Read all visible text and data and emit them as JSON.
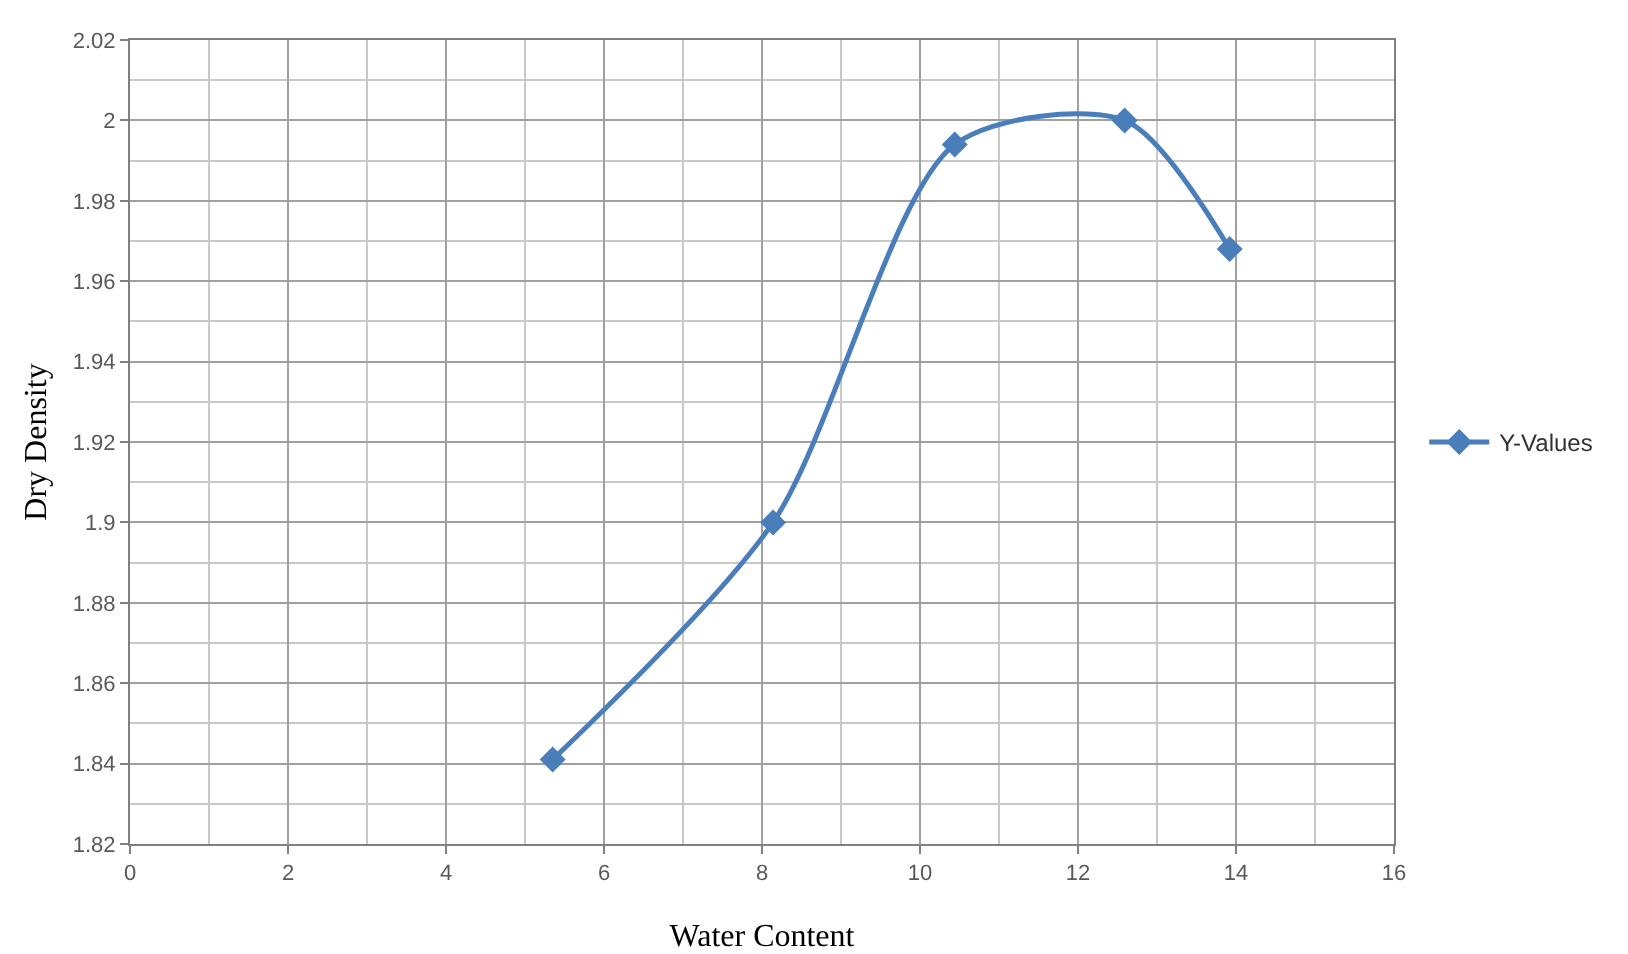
{
  "chart_data": {
    "type": "line",
    "xlabel": "Water Content",
    "ylabel": "Dry Density",
    "series": [
      {
        "name": "Y-Values",
        "color": "#4a7ebb",
        "x": [
          5.35,
          8.14,
          10.44,
          12.59,
          13.92
        ],
        "values": [
          1.841,
          1.9,
          1.994,
          2.0,
          1.968
        ]
      }
    ],
    "xlim": [
      0,
      16
    ],
    "xticks": [
      0,
      2,
      4,
      6,
      8,
      10,
      12,
      14,
      16
    ],
    "ylim": [
      1.82,
      2.02
    ],
    "yticks": [
      1.82,
      1.84,
      1.86,
      1.88,
      1.9,
      1.92,
      1.94,
      1.96,
      1.98,
      2,
      2.02
    ],
    "grid": true,
    "legend": "right",
    "marker": "diamond",
    "line_style": "solid"
  }
}
